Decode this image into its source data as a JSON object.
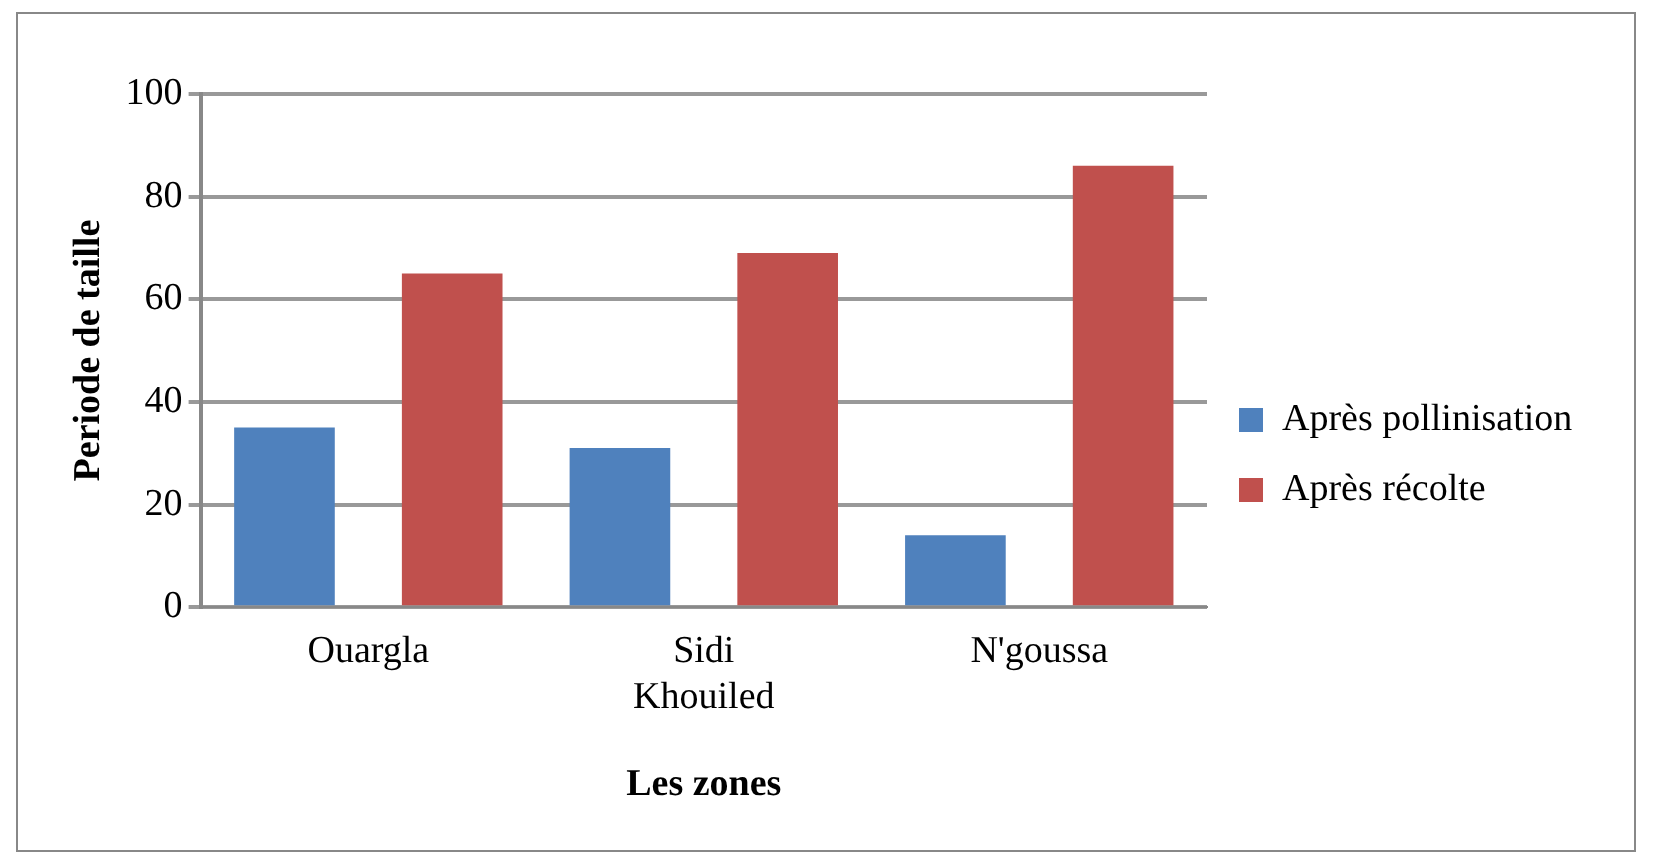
{
  "chart_data": {
    "type": "bar",
    "xlabel": "Les zones",
    "ylabel": "Periode de taille",
    "categories": [
      "Ouargla",
      "Sidi Khouiled",
      "N'goussa"
    ],
    "series": [
      {
        "name": "Après pollinisation",
        "color": "#4f81bd",
        "values": [
          35,
          31,
          14
        ]
      },
      {
        "name": "Après récolte",
        "color": "#c0504d",
        "values": [
          65,
          69,
          86
        ]
      }
    ],
    "ylim": [
      0,
      100
    ],
    "yticks": [
      0,
      20,
      40,
      60,
      80,
      100
    ],
    "grid": "y",
    "legend": "right"
  }
}
